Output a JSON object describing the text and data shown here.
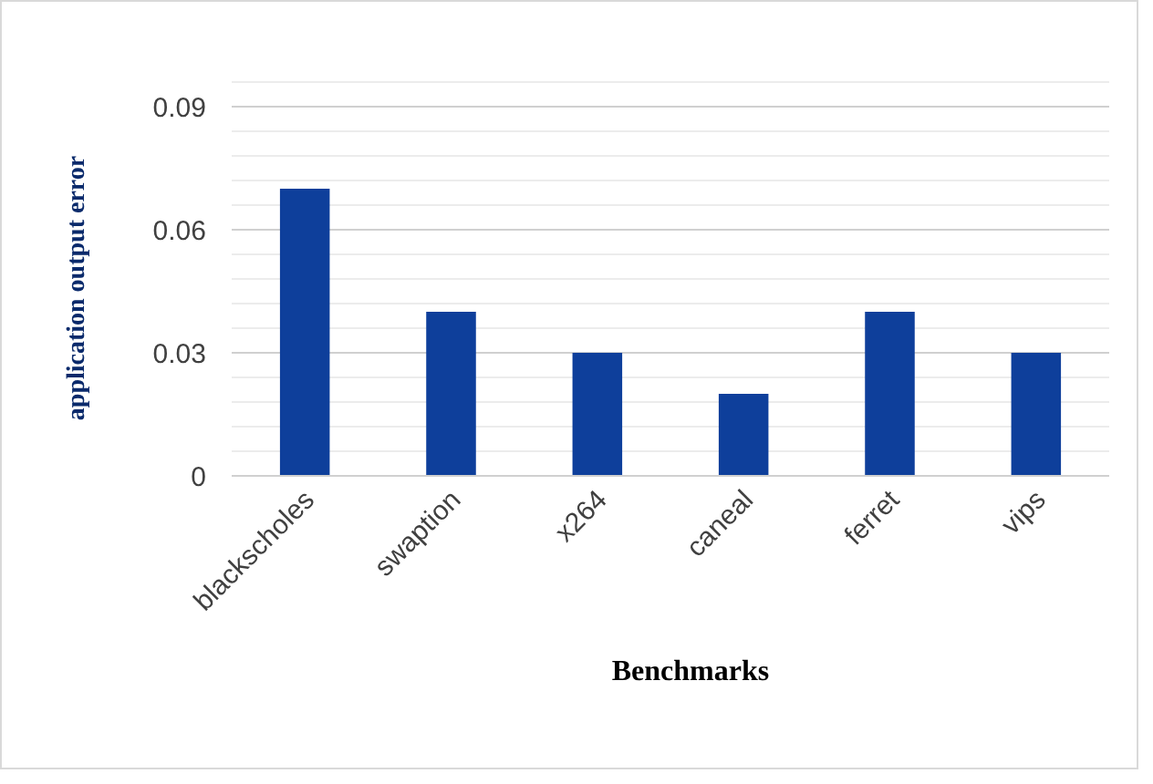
{
  "chart_data": {
    "type": "bar",
    "xlabel": "Benchmarks",
    "ylabel": "application output error",
    "categories": [
      "blackscholes",
      "swaption",
      "x264",
      "caneal",
      "ferret",
      "vips"
    ],
    "values": [
      0.07,
      0.04,
      0.03,
      0.02,
      0.04,
      0.03
    ],
    "color": "#0e3f9b",
    "ylim": [
      0,
      0.096
    ],
    "yticks": [
      0,
      {
        "value": 0.006,
        "label": null
      },
      {
        "value": 0.012,
        "label": null
      },
      {
        "value": 0.018,
        "label": null
      },
      {
        "value": 0.024,
        "label": null
      },
      0.03,
      {
        "value": 0.036,
        "label": null
      },
      {
        "value": 0.042,
        "label": null
      },
      {
        "value": 0.048,
        "label": null
      },
      {
        "value": 0.054,
        "label": null
      },
      0.06,
      {
        "value": 0.066,
        "label": null
      },
      {
        "value": 0.072,
        "label": null
      },
      {
        "value": 0.078,
        "label": null
      },
      {
        "value": 0.084,
        "label": null
      },
      0.09,
      {
        "value": 0.096,
        "label": null
      }
    ],
    "grid": true
  }
}
